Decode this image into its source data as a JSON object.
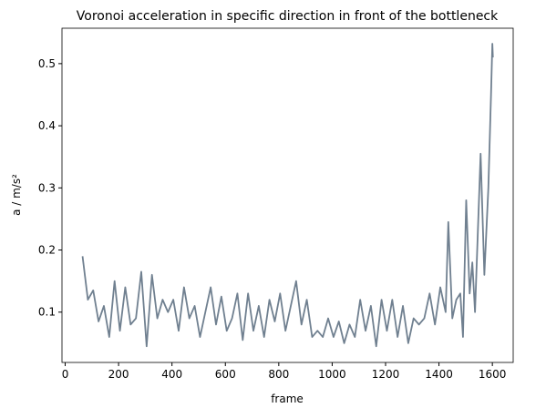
{
  "chart_data": {
    "type": "line",
    "title": "Voronoi acceleration in specific direction in front of the bottleneck",
    "x_label": "frame",
    "y_label": "a / m/s²",
    "x": [
      65,
      85,
      105,
      125,
      145,
      165,
      185,
      205,
      225,
      245,
      265,
      285,
      305,
      325,
      345,
      365,
      385,
      405,
      425,
      445,
      465,
      485,
      505,
      525,
      545,
      565,
      585,
      605,
      625,
      645,
      665,
      685,
      705,
      725,
      745,
      765,
      785,
      805,
      825,
      845,
      865,
      885,
      905,
      925,
      945,
      965,
      985,
      1005,
      1025,
      1045,
      1065,
      1085,
      1105,
      1125,
      1145,
      1165,
      1185,
      1205,
      1225,
      1245,
      1265,
      1285,
      1305,
      1325,
      1345,
      1365,
      1385,
      1405,
      1425,
      1435,
      1450,
      1465,
      1480,
      1490,
      1502,
      1515,
      1525,
      1535,
      1556,
      1570,
      1585,
      1595,
      1600,
      1602
    ],
    "series": [
      {
        "name": "acceleration",
        "color": "#708090",
        "values": [
          0.19,
          0.12,
          0.135,
          0.085,
          0.11,
          0.06,
          0.15,
          0.07,
          0.14,
          0.08,
          0.09,
          0.165,
          0.045,
          0.16,
          0.09,
          0.12,
          0.1,
          0.12,
          0.07,
          0.14,
          0.09,
          0.11,
          0.06,
          0.1,
          0.14,
          0.08,
          0.125,
          0.07,
          0.09,
          0.13,
          0.055,
          0.13,
          0.07,
          0.11,
          0.06,
          0.12,
          0.085,
          0.13,
          0.07,
          0.11,
          0.15,
          0.08,
          0.12,
          0.06,
          0.07,
          0.06,
          0.09,
          0.06,
          0.085,
          0.05,
          0.08,
          0.06,
          0.12,
          0.07,
          0.11,
          0.045,
          0.12,
          0.07,
          0.12,
          0.06,
          0.11,
          0.05,
          0.09,
          0.08,
          0.09,
          0.13,
          0.08,
          0.14,
          0.1,
          0.245,
          0.09,
          0.12,
          0.13,
          0.06,
          0.28,
          0.13,
          0.18,
          0.1,
          0.355,
          0.16,
          0.3,
          0.45,
          0.532,
          0.51
        ]
      }
    ],
    "xlim": [
      -12,
      1678
    ],
    "xticks": [
      0,
      200,
      400,
      600,
      800,
      1000,
      1200,
      1400,
      1600
    ],
    "ylim": [
      0.019,
      0.557
    ],
    "yticks": [
      0.1,
      0.2,
      0.3,
      0.4,
      0.5
    ]
  }
}
